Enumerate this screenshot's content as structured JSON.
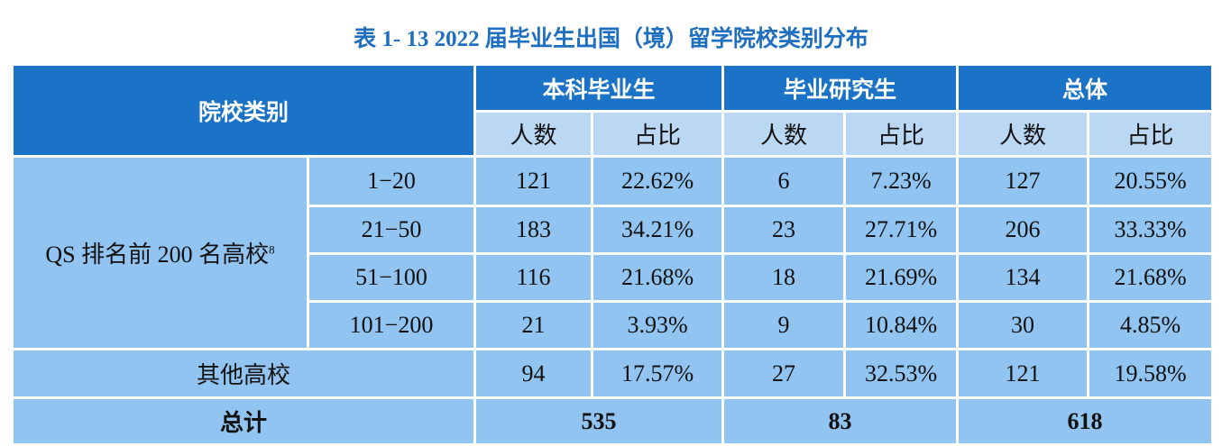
{
  "title": "表 1- 13  2022 届毕业生出国（境）留学院校类别分布",
  "header": {
    "category": "院校类别",
    "groups": [
      {
        "name": "本科毕业生",
        "columns": [
          "人数",
          "占比"
        ]
      },
      {
        "name": "毕业研究生",
        "columns": [
          "人数",
          "占比"
        ]
      },
      {
        "name": "总体",
        "columns": [
          "人数",
          "占比"
        ]
      }
    ]
  },
  "qs": {
    "label": "QS 排名前 200 名高校",
    "footnote": "8",
    "rows": [
      {
        "range": "1−20",
        "cells": [
          121,
          "22.62%",
          6,
          "7.23%",
          127,
          "20.55%"
        ]
      },
      {
        "range": "21−50",
        "cells": [
          183,
          "34.21%",
          23,
          "27.71%",
          206,
          "33.33%"
        ]
      },
      {
        "range": "51−100",
        "cells": [
          116,
          "21.68%",
          18,
          "21.69%",
          134,
          "21.68%"
        ]
      },
      {
        "range": "101−200",
        "cells": [
          21,
          "3.93%",
          9,
          "10.84%",
          30,
          "4.85%"
        ]
      }
    ]
  },
  "other": {
    "label": "其他高校",
    "cells": [
      94,
      "17.57%",
      27,
      "32.53%",
      121,
      "19.58%"
    ]
  },
  "total": {
    "label": "总计",
    "values": [
      535,
      83,
      618
    ]
  }
}
